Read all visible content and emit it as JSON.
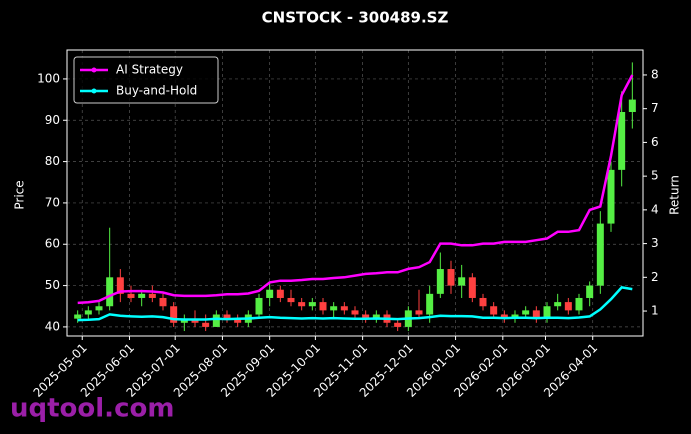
{
  "chart_data": {
    "type": "candlestick",
    "title": "CNSTOCK - 300489.SZ",
    "ylabel": "Price",
    "y2label": "Return",
    "watermark": "uqtool.com",
    "x": [
      "2025-04-28",
      "2025-05-05",
      "2025-05-12",
      "2025-05-19",
      "2025-05-26",
      "2025-06-02",
      "2025-06-09",
      "2025-06-16",
      "2025-06-23",
      "2025-06-30",
      "2025-07-07",
      "2025-07-14",
      "2025-07-21",
      "2025-07-28",
      "2025-08-04",
      "2025-08-11",
      "2025-08-18",
      "2025-08-25",
      "2025-09-01",
      "2025-09-08",
      "2025-09-15",
      "2025-09-22",
      "2025-09-29",
      "2025-10-06",
      "2025-10-13",
      "2025-10-20",
      "2025-10-27",
      "2025-11-03",
      "2025-11-10",
      "2025-11-17",
      "2025-11-24",
      "2025-12-01",
      "2025-12-08",
      "2025-12-15",
      "2025-12-22",
      "2025-12-29",
      "2026-01-05",
      "2026-01-12",
      "2026-01-19",
      "2026-01-26",
      "2026-02-02",
      "2026-02-09",
      "2026-02-16",
      "2026-02-23",
      "2026-03-02",
      "2026-03-09",
      "2026-03-16",
      "2026-03-23",
      "2026-03-30",
      "2026-04-06",
      "2026-04-13",
      "2026-04-20",
      "2026-04-27"
    ],
    "candles": {
      "open": [
        42,
        43,
        44,
        45,
        52,
        48,
        47,
        48,
        47,
        45,
        41,
        42,
        41,
        40,
        43,
        42,
        41,
        43,
        47,
        49,
        47,
        46,
        45,
        46,
        44,
        45,
        44,
        43,
        42,
        43,
        41,
        40,
        44,
        43,
        48,
        54,
        50,
        52,
        47,
        45,
        43,
        42,
        43,
        44,
        42,
        45,
        46,
        44,
        47,
        50,
        65,
        78,
        92
      ],
      "high": [
        44,
        45,
        46,
        64,
        54,
        50,
        49,
        50,
        48,
        46,
        43,
        44,
        43,
        44,
        44,
        43,
        44,
        48,
        51,
        50,
        49,
        47,
        47,
        47,
        46,
        46,
        45,
        44,
        44,
        44,
        42,
        45,
        49,
        50,
        58,
        56,
        55,
        53,
        48,
        46,
        44,
        44,
        45,
        45,
        46,
        48,
        47,
        48,
        51,
        68,
        80,
        97,
        104
      ],
      "low": [
        41,
        42,
        43,
        44,
        46,
        46,
        45,
        46,
        44,
        40,
        39,
        40,
        39,
        40,
        41,
        40,
        40,
        42,
        45,
        46,
        45,
        44,
        44,
        43,
        42,
        43,
        42,
        41,
        41,
        40,
        39,
        39,
        42,
        41,
        47,
        48,
        47,
        46,
        44,
        42,
        41,
        41,
        42,
        41,
        41,
        44,
        43,
        43,
        45,
        48,
        63,
        74,
        88
      ],
      "close": [
        43,
        44,
        45,
        52,
        48,
        47,
        48,
        47,
        45,
        41,
        42,
        41,
        40,
        43,
        42,
        41,
        43,
        47,
        49,
        47,
        46,
        45,
        46,
        44,
        45,
        44,
        43,
        42,
        43,
        41,
        40,
        44,
        43,
        48,
        54,
        50,
        52,
        47,
        45,
        43,
        42,
        43,
        44,
        42,
        45,
        46,
        44,
        47,
        50,
        65,
        78,
        92,
        95
      ],
      "up_color": "#55ee44",
      "down_color": "#ff4040"
    },
    "series": [
      {
        "name": "AI Strategy",
        "color": "#ff00ff",
        "axis": "y2",
        "values": [
          1.24,
          1.26,
          1.3,
          1.45,
          1.58,
          1.59,
          1.59,
          1.58,
          1.55,
          1.47,
          1.45,
          1.45,
          1.45,
          1.47,
          1.5,
          1.5,
          1.52,
          1.6,
          1.85,
          1.9,
          1.9,
          1.92,
          1.95,
          1.95,
          1.98,
          2.0,
          2.05,
          2.1,
          2.12,
          2.15,
          2.15,
          2.25,
          2.3,
          2.45,
          3.0,
          3.0,
          2.95,
          2.95,
          3.0,
          3.0,
          3.05,
          3.05,
          3.05,
          3.1,
          3.15,
          3.35,
          3.35,
          3.4,
          4.0,
          4.1,
          5.6,
          7.4,
          8.0
        ]
      },
      {
        "name": "Buy-and-Hold",
        "color": "#00ffff",
        "axis": "y2",
        "values": [
          0.73,
          0.74,
          0.76,
          0.9,
          0.86,
          0.84,
          0.83,
          0.84,
          0.82,
          0.76,
          0.75,
          0.75,
          0.75,
          0.77,
          0.76,
          0.77,
          0.78,
          0.8,
          0.82,
          0.8,
          0.79,
          0.78,
          0.79,
          0.78,
          0.79,
          0.78,
          0.77,
          0.77,
          0.78,
          0.77,
          0.76,
          0.78,
          0.79,
          0.82,
          0.86,
          0.85,
          0.85,
          0.84,
          0.8,
          0.8,
          0.79,
          0.8,
          0.8,
          0.79,
          0.8,
          0.8,
          0.79,
          0.81,
          0.84,
          1.05,
          1.35,
          1.7,
          1.65
        ]
      }
    ],
    "xlim": [
      "2025-04-21",
      "2026-05-04"
    ],
    "xticks": [
      "2025-05-01",
      "2025-06-01",
      "2025-07-01",
      "2025-08-01",
      "2025-09-01",
      "2025-10-01",
      "2025-11-01",
      "2025-12-01",
      "2026-01-01",
      "2026-02-01",
      "2026-03-01",
      "2026-04-01"
    ],
    "ylim": [
      37.8,
      107
    ],
    "yticks": [
      40,
      50,
      60,
      70,
      80,
      90,
      100
    ],
    "y2lim": [
      0.26,
      8.74
    ],
    "y2ticks": [
      1,
      2,
      3,
      4,
      5,
      6,
      7,
      8
    ],
    "grid": true,
    "legend": "upper left"
  }
}
